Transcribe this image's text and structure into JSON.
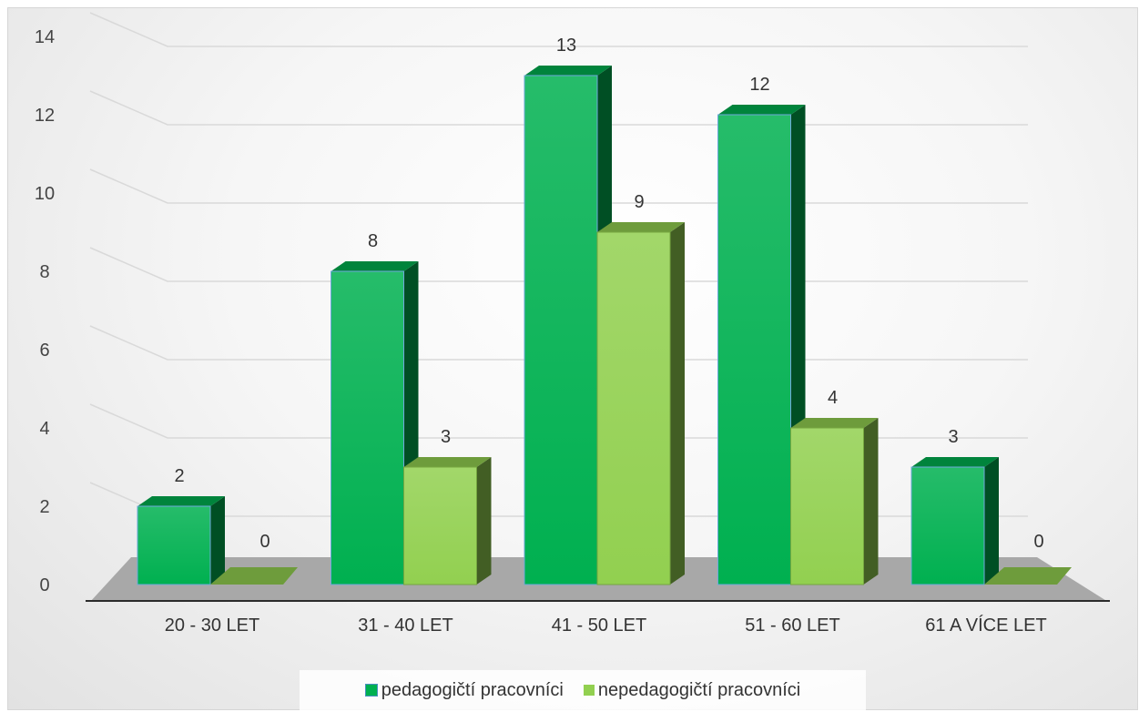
{
  "chart_data": {
    "type": "bar",
    "title": "",
    "xlabel": "",
    "ylabel": "",
    "categories": [
      "20 - 30 LET",
      "31 - 40 LET",
      "41 - 50 LET",
      "51 - 60 LET",
      "61 A VÍCE LET"
    ],
    "series": [
      {
        "name": "pedagogičtí pracovníci",
        "values": [
          2,
          8,
          13,
          12,
          3
        ],
        "color": "#00b050"
      },
      {
        "name": "nepedagogičtí pracovníci",
        "values": [
          0,
          3,
          9,
          4,
          0
        ],
        "color": "#92d050"
      }
    ],
    "ylim": [
      0,
      14
    ],
    "yticks": [
      0,
      2,
      4,
      6,
      8,
      10,
      12,
      14
    ],
    "grid": true,
    "legend_position": "bottom",
    "data_labels": true
  }
}
